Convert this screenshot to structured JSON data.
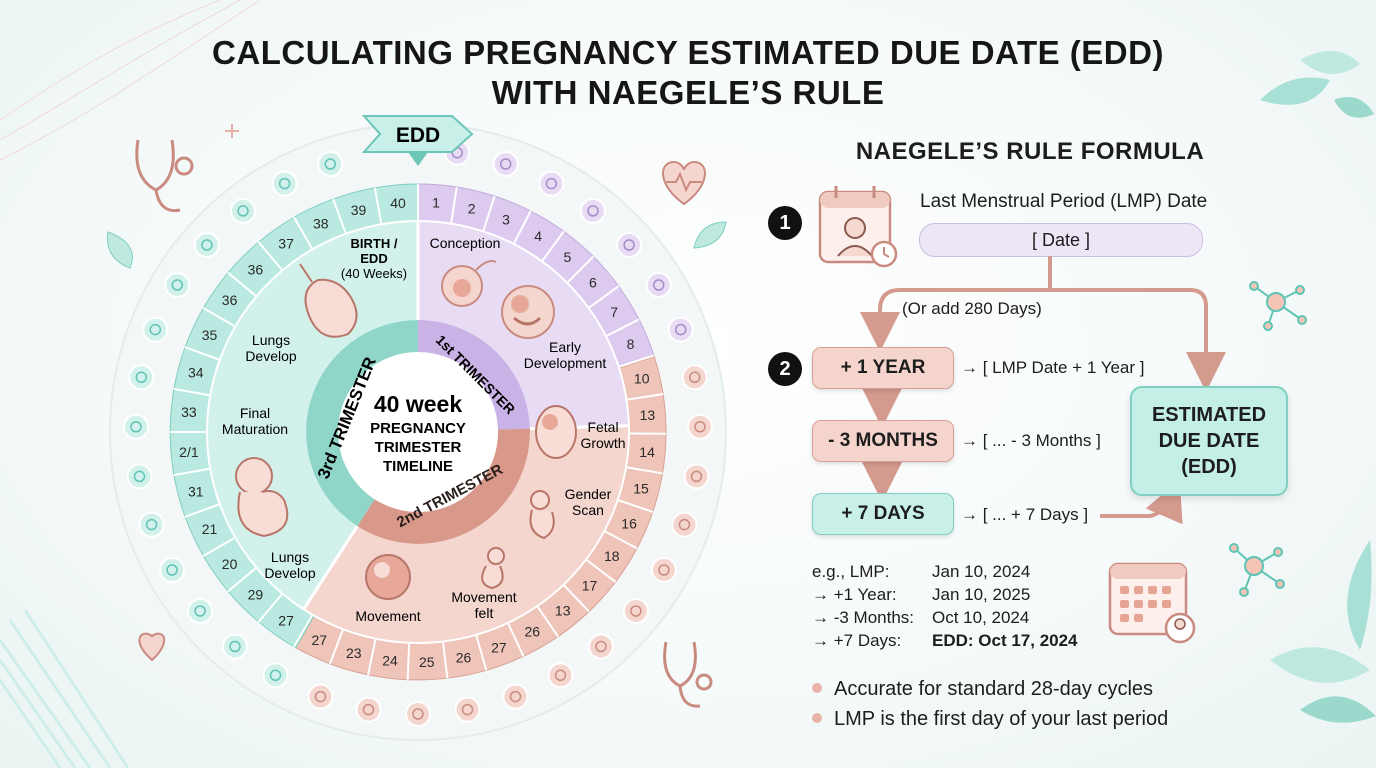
{
  "title": {
    "line1": "CALCULATING PREGNANCY ESTIMATED DUE DATE (EDD)",
    "line2": "WITH NAEGELE’S RULE"
  },
  "wheel": {
    "edd_banner": "EDD",
    "center": [
      "40 week",
      "PREGNANCY",
      "TRIMESTER",
      "TIMELINE"
    ],
    "trimesters": [
      "1st TRIMESTER",
      "2nd TRIMESTER",
      "3rd TRIMESTER"
    ],
    "week_labels_1st": [
      "1",
      "2",
      "3",
      "4",
      "5",
      "6",
      "7",
      "8"
    ],
    "week_labels_2nd": [
      "10",
      "13",
      "14",
      "15",
      "16",
      "18",
      "17",
      "13",
      "26",
      "27",
      "26",
      "25",
      "24",
      "23",
      "27"
    ],
    "week_labels_3rd": [
      "27",
      "29",
      "20",
      "21",
      "31",
      "2/1",
      "33",
      "34",
      "35",
      "36",
      "36",
      "37",
      "38",
      "39",
      "40"
    ],
    "milestones": {
      "conception": "Conception",
      "early_development": "Early Development",
      "fetal_growth": "Fetal Growth",
      "gender_scan": "Gender Scan",
      "movement_felt": "Movement felt",
      "movement": "Movement",
      "lungs_develop_lower": "Lungs Develop",
      "final_maturation": "Final Maturation",
      "lungs_develop_upper": "Lungs Develop",
      "birth_line1": "BIRTH /",
      "birth_line2": "EDD",
      "birth_line3": "(40 Weeks)"
    }
  },
  "formula": {
    "title": "NAEGELE’S RULE FORMULA",
    "step1_number": "1",
    "step1_label": "Last Menstrual Period (LMP) Date",
    "date_placeholder": "[ Date ]",
    "or_add": "(Or add 280 Days)",
    "step2_number": "2",
    "ops": [
      {
        "label": "+ 1 YEAR",
        "result": "→ [ LMP Date + 1 Year ]"
      },
      {
        "label": "- 3 MONTHS",
        "result": "→ [ ... - 3 Months ]"
      },
      {
        "label": "+ 7 DAYS",
        "result": "→ [ ... + 7 Days ]"
      }
    ],
    "edd_line1": "ESTIMATED",
    "edd_line2": "DUE DATE",
    "edd_line3": "(EDD)"
  },
  "example": [
    {
      "k": "e.g., LMP:",
      "v": "Jan 10, 2024"
    },
    {
      "k": "→ +1 Year:",
      "v": "Jan 10, 2025"
    },
    {
      "k": "→ -3 Months:",
      "v": "Oct 10, 2024"
    },
    {
      "k": "→ +7 Days:",
      "v": "EDD: Oct 17, 2024"
    }
  ],
  "bullets": [
    "Accurate for standard 28-day cycles",
    "LMP is the first day of your last period"
  ],
  "colors": {
    "teal": "#b9e9e0",
    "lavender": "#dccbef",
    "peach": "#efc4b9",
    "dark_teal": "#5fc4b4"
  }
}
